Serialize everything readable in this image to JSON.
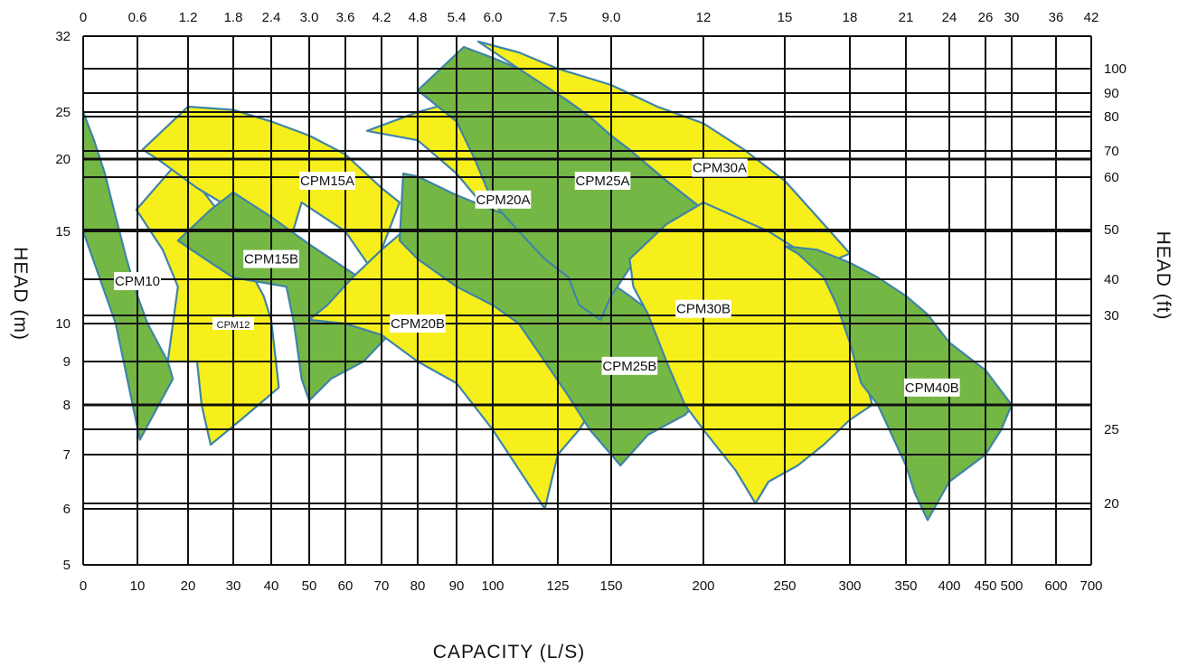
{
  "chart_data": {
    "type": "area",
    "title": "",
    "xlabel": "CAPACITY (L/S)",
    "ylabel_left": "HEAD (m)",
    "ylabel_right": "HEAD (ft)",
    "x_axis_bottom_ticks": [
      "0",
      "10",
      "20",
      "30",
      "40",
      "50",
      "60",
      "70",
      "80",
      "90",
      "100",
      "125",
      "150",
      "200",
      "250",
      "300",
      "350",
      "400",
      "450",
      "500",
      "600",
      "700"
    ],
    "x_axis_top_ticks": [
      "0",
      "0.6",
      "1.2",
      "1.8",
      "2.4",
      "3.0",
      "3.6",
      "4.2",
      "4.8",
      "5.4",
      "6.0",
      "7.5",
      "9.0",
      "12",
      "15",
      "18",
      "21",
      "24",
      "26",
      "30",
      "36",
      "42"
    ],
    "y_axis_left_ticks": [
      "32",
      "25",
      "20",
      "15",
      "10",
      "9",
      "8",
      "7",
      "6",
      "5"
    ],
    "y_axis_right_ticks": [
      "100",
      "90",
      "80",
      "70",
      "60",
      "50",
      "40",
      "30",
      "25",
      "20"
    ],
    "colors": {
      "yellow": "#f7ef1b",
      "green": "#74b744",
      "edge": "#3f84a6"
    },
    "series": [
      {
        "name": "CPM10",
        "color": "green",
        "points": [
          [
            0,
            25
          ],
          [
            2,
            22
          ],
          [
            4,
            19
          ],
          [
            6,
            16
          ],
          [
            8,
            13.5
          ],
          [
            10,
            11.5
          ],
          [
            12,
            10
          ],
          [
            16,
            9
          ],
          [
            17,
            8.6
          ],
          [
            10.5,
            7.3
          ],
          [
            6,
            10
          ],
          [
            0,
            15
          ]
        ]
      },
      {
        "name": "CPM12",
        "color": "yellow",
        "points": [
          [
            9.8,
            16.5
          ],
          [
            18,
            19.8
          ],
          [
            24,
            17.5
          ],
          [
            30,
            15
          ],
          [
            34,
            13
          ],
          [
            38,
            11.5
          ],
          [
            40,
            10.2
          ],
          [
            42,
            8.4
          ],
          [
            32,
            7.7
          ],
          [
            25,
            7.2
          ],
          [
            23,
            8
          ],
          [
            22,
            9
          ],
          [
            16,
            9
          ],
          [
            18,
            12
          ],
          [
            15,
            14
          ]
        ]
      },
      {
        "name": "CPM15A",
        "color": "yellow",
        "points": [
          [
            11,
            21
          ],
          [
            20,
            25.5
          ],
          [
            30,
            25.2
          ],
          [
            40,
            24
          ],
          [
            50,
            22.5
          ],
          [
            60,
            20.5
          ],
          [
            70,
            18
          ],
          [
            75,
            17
          ],
          [
            70,
            14
          ],
          [
            67,
            13
          ],
          [
            60,
            15
          ],
          [
            48,
            17
          ],
          [
            45,
            14.5
          ],
          [
            30,
            16.5
          ],
          [
            22,
            18
          ],
          [
            14,
            20
          ]
        ]
      },
      {
        "name": "CPM15B",
        "color": "green",
        "points": [
          [
            18,
            14.5
          ],
          [
            25,
            16.5
          ],
          [
            30,
            17.7
          ],
          [
            40,
            16
          ],
          [
            50,
            14.3
          ],
          [
            60,
            13
          ],
          [
            66,
            12.2
          ],
          [
            70,
            11
          ],
          [
            73,
            9.8
          ],
          [
            65,
            9
          ],
          [
            56,
            8.6
          ],
          [
            50,
            8.1
          ],
          [
            48,
            8.6
          ],
          [
            46,
            10
          ],
          [
            44,
            12
          ],
          [
            30,
            12.5
          ],
          [
            25,
            13.3
          ]
        ]
      },
      {
        "name": "CPM20B",
        "color": "yellow",
        "points": [
          [
            50,
            10.2
          ],
          [
            55,
            11
          ],
          [
            62,
            12.5
          ],
          [
            70,
            14
          ],
          [
            76,
            15
          ],
          [
            82,
            16
          ],
          [
            90,
            15.5
          ],
          [
            100,
            14
          ],
          [
            110,
            13
          ],
          [
            125,
            12.1
          ],
          [
            130,
            11
          ],
          [
            140,
            9
          ],
          [
            145,
            8.2
          ],
          [
            135,
            7.5
          ],
          [
            125,
            7
          ],
          [
            120,
            6
          ],
          [
            100,
            7.5
          ],
          [
            90,
            8.5
          ],
          [
            80,
            9
          ],
          [
            70,
            9.7
          ],
          [
            60,
            10
          ]
        ]
      },
      {
        "name": "CPM20A",
        "color": "yellow",
        "points": [
          [
            66,
            23
          ],
          [
            80,
            25
          ],
          [
            90,
            26
          ],
          [
            100,
            28
          ],
          [
            110,
            27
          ],
          [
            120,
            24
          ],
          [
            130,
            20
          ],
          [
            140,
            17
          ],
          [
            132,
            15
          ],
          [
            128,
            14
          ],
          [
            112,
            13
          ],
          [
            105,
            14
          ],
          [
            100,
            16
          ],
          [
            90,
            19
          ],
          [
            80,
            22
          ]
        ]
      },
      {
        "name": "CPM25B",
        "color": "green",
        "points": [
          [
            75,
            14.5
          ],
          [
            76,
            19
          ],
          [
            80,
            18.8
          ],
          [
            90,
            17.5
          ],
          [
            100,
            16.5
          ],
          [
            110,
            15.8
          ],
          [
            125,
            14.5
          ],
          [
            140,
            13
          ],
          [
            160,
            11.5
          ],
          [
            180,
            10
          ],
          [
            200,
            8.2
          ],
          [
            190,
            7.8
          ],
          [
            170,
            7.4
          ],
          [
            155,
            6.8
          ],
          [
            150,
            7
          ],
          [
            140,
            7.5
          ],
          [
            130,
            8.2
          ],
          [
            120,
            9
          ],
          [
            110,
            10
          ],
          [
            100,
            11
          ],
          [
            90,
            12
          ],
          [
            80,
            13.5
          ]
        ]
      },
      {
        "name": "CPM25A",
        "color": "green",
        "points": [
          [
            80,
            27
          ],
          [
            92,
            31
          ],
          [
            100,
            30
          ],
          [
            110,
            29
          ],
          [
            120,
            27.5
          ],
          [
            130,
            26
          ],
          [
            140,
            24.5
          ],
          [
            150,
            22.5
          ],
          [
            160,
            21
          ],
          [
            180,
            18.5
          ],
          [
            200,
            16.5
          ],
          [
            175,
            14.5
          ],
          [
            160,
            13
          ],
          [
            150,
            11.5
          ],
          [
            145,
            10.2
          ],
          [
            135,
            11
          ],
          [
            130,
            12.5
          ],
          [
            120,
            13.5
          ],
          [
            110,
            15
          ],
          [
            100,
            17
          ],
          [
            95,
            20
          ],
          [
            90,
            24
          ]
        ]
      },
      {
        "name": "CPM30A",
        "color": "yellow",
        "points": [
          [
            96,
            31.5
          ],
          [
            110,
            30.5
          ],
          [
            125,
            29
          ],
          [
            150,
            27.5
          ],
          [
            175,
            25.5
          ],
          [
            200,
            23.8
          ],
          [
            225,
            21
          ],
          [
            250,
            18.5
          ],
          [
            275,
            16
          ],
          [
            300,
            13.8
          ],
          [
            290,
            13.5
          ],
          [
            270,
            14
          ],
          [
            250,
            14
          ],
          [
            225,
            15
          ],
          [
            210,
            16
          ],
          [
            200,
            16.5
          ],
          [
            180,
            18.5
          ],
          [
            160,
            21
          ],
          [
            150,
            22.5
          ],
          [
            140,
            24.5
          ],
          [
            130,
            26
          ],
          [
            110,
            29
          ]
        ]
      },
      {
        "name": "CPM30B",
        "color": "yellow",
        "points": [
          [
            160,
            13.5
          ],
          [
            180,
            15.5
          ],
          [
            200,
            17
          ],
          [
            220,
            16
          ],
          [
            240,
            15
          ],
          [
            260,
            14
          ],
          [
            280,
            12.5
          ],
          [
            300,
            10
          ],
          [
            320,
            8
          ],
          [
            300,
            7.7
          ],
          [
            280,
            7.2
          ],
          [
            260,
            6.8
          ],
          [
            240,
            6.5
          ],
          [
            232,
            6.1
          ],
          [
            220,
            6.7
          ],
          [
            200,
            7.5
          ],
          [
            190,
            8
          ],
          [
            180,
            9
          ],
          [
            170,
            10.5
          ],
          [
            162,
            12
          ]
        ]
      },
      {
        "name": "CPM40B",
        "color": "green",
        "points": [
          [
            250,
            14.2
          ],
          [
            275,
            14
          ],
          [
            300,
            13.3
          ],
          [
            325,
            12.5
          ],
          [
            350,
            11.5
          ],
          [
            375,
            10.5
          ],
          [
            400,
            9.5
          ],
          [
            450,
            8.8
          ],
          [
            500,
            8
          ],
          [
            480,
            7.5
          ],
          [
            450,
            7
          ],
          [
            400,
            6.5
          ],
          [
            375,
            5.8
          ],
          [
            360,
            6.3
          ],
          [
            350,
            6.8
          ],
          [
            325,
            8
          ],
          [
            310,
            8.5
          ],
          [
            300,
            9.5
          ],
          [
            290,
            11
          ],
          [
            280,
            12.5
          ],
          [
            260,
            13.8
          ]
        ]
      }
    ],
    "labels": [
      {
        "text": "CPM10",
        "x": 10,
        "y": 12.3
      },
      {
        "text": "CPM12",
        "x": 30,
        "y": 10
      },
      {
        "text": "CPM15A",
        "x": 55,
        "y": 18.5
      },
      {
        "text": "CPM15B",
        "x": 40,
        "y": 13.5
      },
      {
        "text": "CPM20A",
        "x": 104,
        "y": 17.2
      },
      {
        "text": "CPM20B",
        "x": 80,
        "y": 10
      },
      {
        "text": "CPM25A",
        "x": 146,
        "y": 18.5
      },
      {
        "text": "CPM25B",
        "x": 160,
        "y": 8.9
      },
      {
        "text": "CPM30A",
        "x": 210,
        "y": 19.4
      },
      {
        "text": "CPM30B",
        "x": 200,
        "y": 10.8
      },
      {
        "text": "CPM40B",
        "x": 380,
        "y": 8.4
      }
    ]
  }
}
